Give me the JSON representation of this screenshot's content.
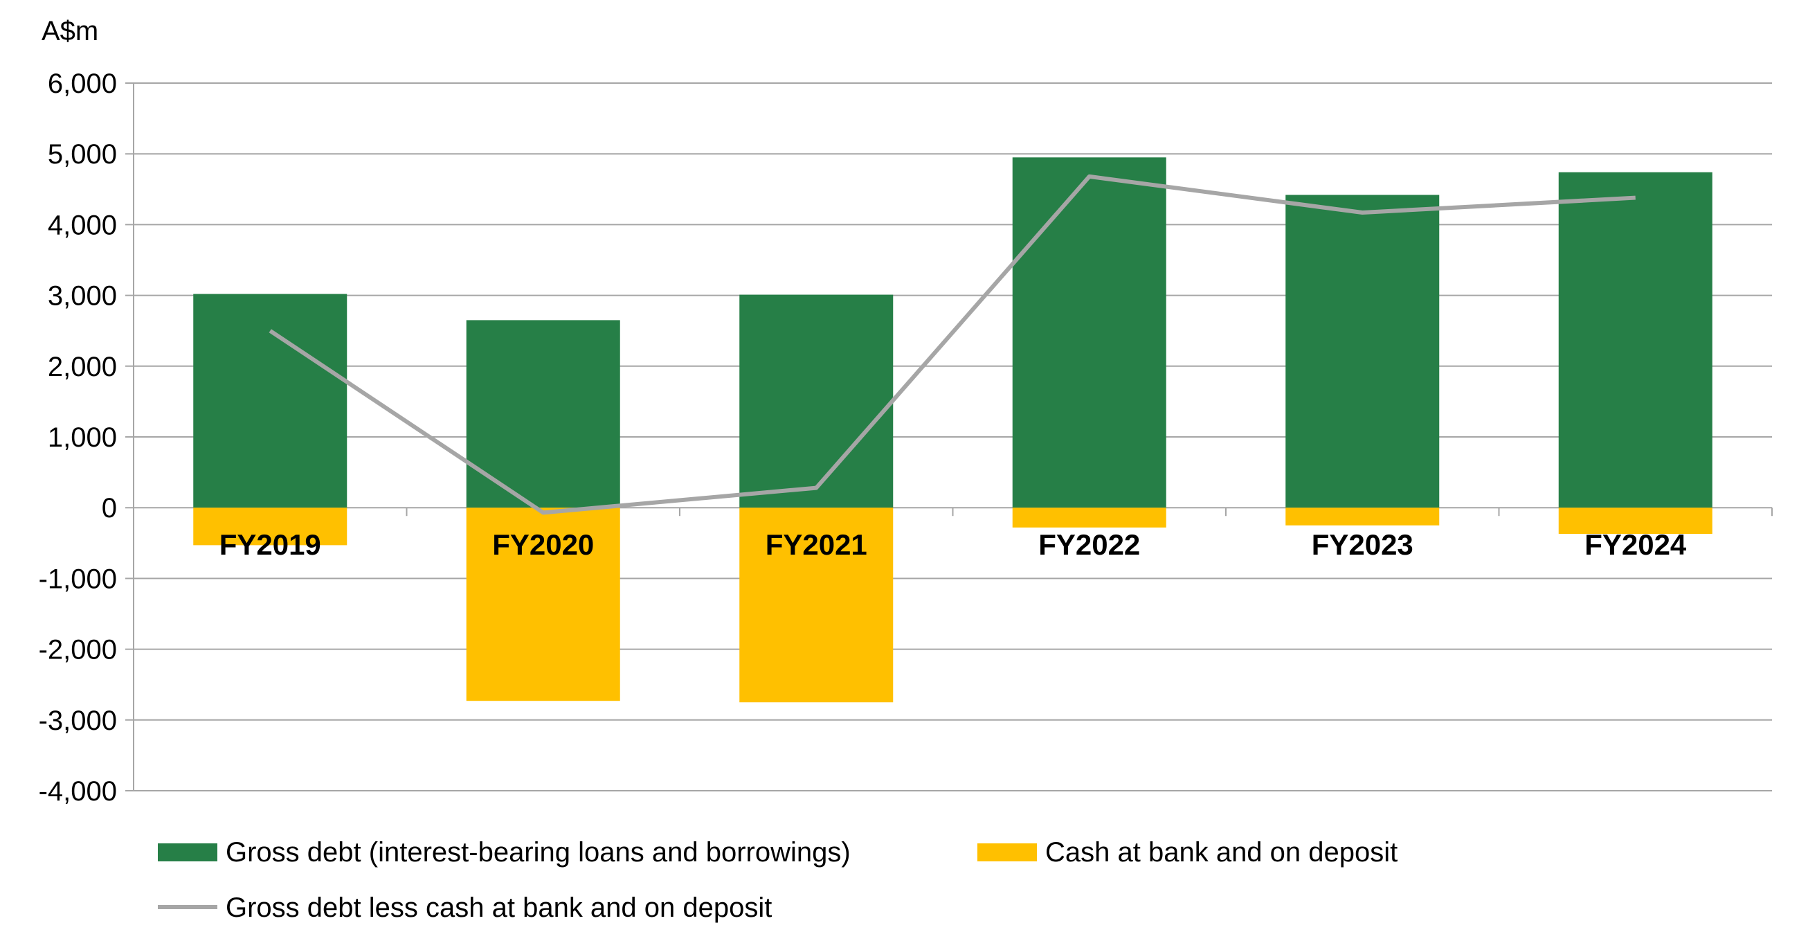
{
  "chart_data": {
    "type": "bar",
    "title": "",
    "y_unit_label": "A$m",
    "xlabel": "",
    "ylabel": "",
    "ylim": [
      -4000,
      6000
    ],
    "ytick_step": 1000,
    "ytick_labels": [
      "6,000",
      "5,000",
      "4,000",
      "3,000",
      "2,000",
      "1,000",
      "0",
      "-1,000",
      "-2,000",
      "-3,000",
      "-4,000"
    ],
    "grid": true,
    "legend_position": "bottom",
    "categories": [
      "FY2019",
      "FY2020",
      "FY2021",
      "FY2022",
      "FY2023",
      "FY2024"
    ],
    "series": [
      {
        "name": "Gross debt (interest-bearing loans and borrowings)",
        "type": "bar",
        "color": "#267F47",
        "values": [
          3020,
          2650,
          3010,
          4950,
          4420,
          4740
        ]
      },
      {
        "name": "Cash at bank and on deposit",
        "type": "bar",
        "color": "#FFC000",
        "values": [
          -530,
          -2730,
          -2750,
          -280,
          -250,
          -370
        ]
      },
      {
        "name": "Gross debt less cash at bank and on deposit",
        "type": "line",
        "color": "#A6A6A6",
        "values": [
          2500,
          -70,
          280,
          4680,
          4170,
          4380
        ]
      }
    ]
  }
}
